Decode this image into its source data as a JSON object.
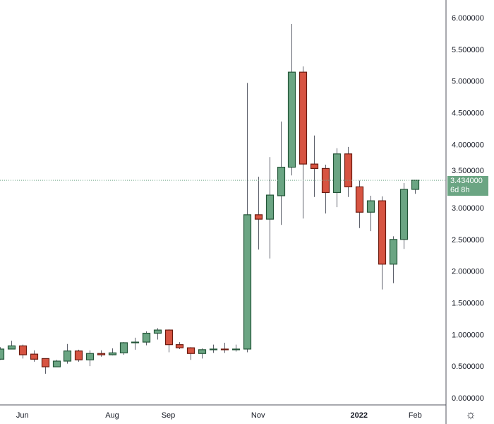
{
  "chart_data": {
    "type": "candlestick",
    "title": "",
    "ylim": [
      0,
      6
    ],
    "y_ticks": [
      "0.000000",
      "0.500000",
      "1.000000",
      "1.500000",
      "2.000000",
      "2.500000",
      "3.000000",
      "3.500000",
      "4.000000",
      "4.500000",
      "5.000000",
      "5.500000",
      "6.000000"
    ],
    "y_tick_values": [
      0,
      0.5,
      1,
      1.5,
      2,
      2.5,
      3,
      3.5,
      4,
      4.5,
      5,
      5.5,
      6
    ],
    "x_labels": [
      {
        "label": "Jun",
        "index": 2,
        "bold": false
      },
      {
        "label": "Aug",
        "index": 10,
        "bold": false
      },
      {
        "label": "Sep",
        "index": 15,
        "bold": false
      },
      {
        "label": "Nov",
        "index": 23,
        "bold": false
      },
      {
        "label": "2022",
        "index": 32,
        "bold": true
      },
      {
        "label": "Feb",
        "index": 37,
        "bold": false
      }
    ],
    "candles": [
      {
        "o": 0.61,
        "h": 0.8,
        "l": 0.6,
        "c": 0.77
      },
      {
        "o": 0.77,
        "h": 0.9,
        "l": 0.77,
        "c": 0.82
      },
      {
        "o": 0.82,
        "h": 0.84,
        "l": 0.62,
        "c": 0.68
      },
      {
        "o": 0.69,
        "h": 0.75,
        "l": 0.57,
        "c": 0.61
      },
      {
        "o": 0.62,
        "h": 0.62,
        "l": 0.38,
        "c": 0.49
      },
      {
        "o": 0.49,
        "h": 0.6,
        "l": 0.49,
        "c": 0.58
      },
      {
        "o": 0.58,
        "h": 0.85,
        "l": 0.54,
        "c": 0.74
      },
      {
        "o": 0.74,
        "h": 0.76,
        "l": 0.57,
        "c": 0.6
      },
      {
        "o": 0.6,
        "h": 0.75,
        "l": 0.5,
        "c": 0.7
      },
      {
        "o": 0.7,
        "h": 0.75,
        "l": 0.65,
        "c": 0.68
      },
      {
        "o": 0.68,
        "h": 0.78,
        "l": 0.67,
        "c": 0.71
      },
      {
        "o": 0.71,
        "h": 0.88,
        "l": 0.68,
        "c": 0.87
      },
      {
        "o": 0.87,
        "h": 0.95,
        "l": 0.76,
        "c": 0.88
      },
      {
        "o": 0.88,
        "h": 1.05,
        "l": 0.83,
        "c": 1.02
      },
      {
        "o": 1.02,
        "h": 1.1,
        "l": 0.92,
        "c": 1.07
      },
      {
        "o": 1.07,
        "h": 1.08,
        "l": 0.72,
        "c": 0.84
      },
      {
        "o": 0.84,
        "h": 0.88,
        "l": 0.77,
        "c": 0.79
      },
      {
        "o": 0.79,
        "h": 0.8,
        "l": 0.6,
        "c": 0.7
      },
      {
        "o": 0.7,
        "h": 0.78,
        "l": 0.62,
        "c": 0.76
      },
      {
        "o": 0.76,
        "h": 0.84,
        "l": 0.71,
        "c": 0.77
      },
      {
        "o": 0.77,
        "h": 0.87,
        "l": 0.71,
        "c": 0.76
      },
      {
        "o": 0.76,
        "h": 0.84,
        "l": 0.73,
        "c": 0.77
      },
      {
        "o": 0.77,
        "h": 4.97,
        "l": 0.72,
        "c": 2.89
      },
      {
        "o": 2.89,
        "h": 3.49,
        "l": 2.34,
        "c": 2.82
      },
      {
        "o": 2.82,
        "h": 3.8,
        "l": 2.2,
        "c": 3.2
      },
      {
        "o": 3.19,
        "h": 4.36,
        "l": 2.73,
        "c": 3.64
      },
      {
        "o": 3.64,
        "h": 5.9,
        "l": 3.51,
        "c": 5.14
      },
      {
        "o": 5.14,
        "h": 5.23,
        "l": 2.83,
        "c": 3.69
      },
      {
        "o": 3.69,
        "h": 4.14,
        "l": 3.17,
        "c": 3.62
      },
      {
        "o": 3.62,
        "h": 3.68,
        "l": 2.91,
        "c": 3.24
      },
      {
        "o": 3.24,
        "h": 3.94,
        "l": 3.01,
        "c": 3.85
      },
      {
        "o": 3.85,
        "h": 3.96,
        "l": 3.17,
        "c": 3.33
      },
      {
        "o": 3.33,
        "h": 3.43,
        "l": 2.68,
        "c": 2.93
      },
      {
        "o": 2.93,
        "h": 3.19,
        "l": 2.63,
        "c": 3.11
      },
      {
        "o": 3.11,
        "h": 3.18,
        "l": 1.71,
        "c": 2.11
      },
      {
        "o": 2.11,
        "h": 2.55,
        "l": 1.81,
        "c": 2.5
      },
      {
        "o": 2.5,
        "h": 3.39,
        "l": 2.35,
        "c": 3.29
      },
      {
        "o": 3.29,
        "h": 3.44,
        "l": 3.22,
        "c": 3.434
      }
    ],
    "last_price": 3.434,
    "last_price_label": "3.434000",
    "countdown": "6d 8h",
    "colors": {
      "up_fill": "#6ba583",
      "up_border": "#225437",
      "down_fill": "#d75442",
      "down_border": "#6b1a0f",
      "price_line": "#6ba583"
    }
  },
  "toolbar": {
    "settings_icon": "gear-icon"
  }
}
